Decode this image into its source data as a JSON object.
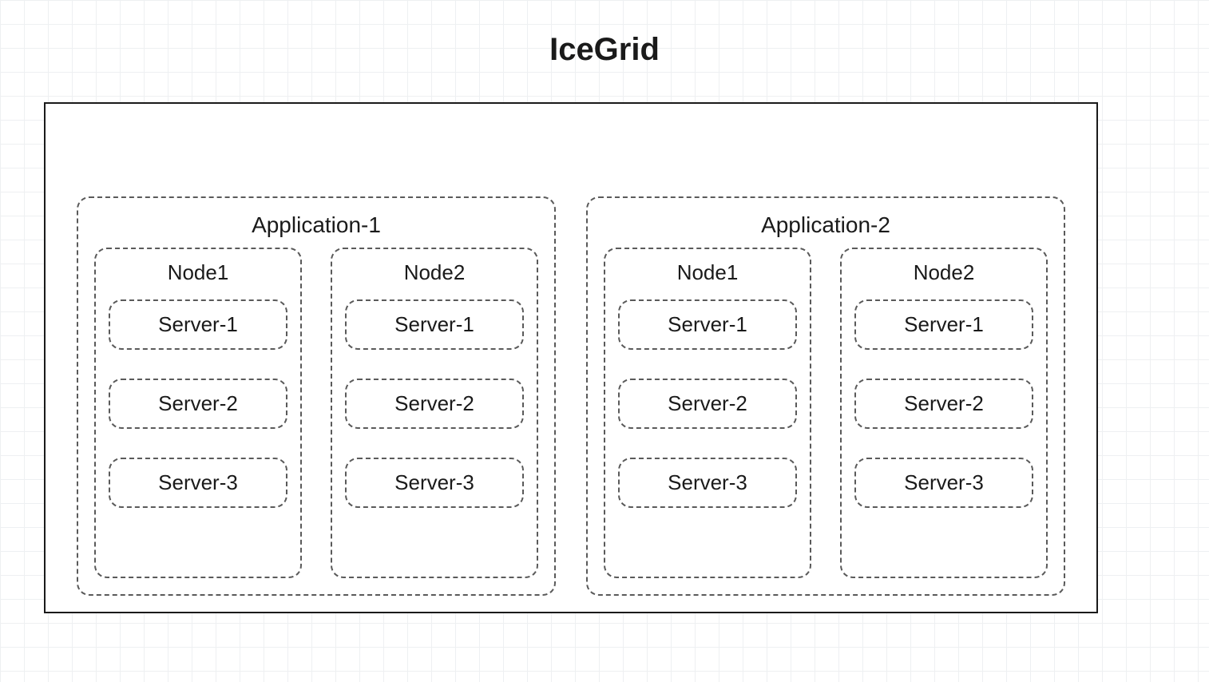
{
  "diagram": {
    "title": "IceGrid",
    "colors": {
      "background": "#ffffff",
      "grid_line": "#eef0f2",
      "border_solid": "#1a1a1a",
      "border_dashed": "#5a5a5a",
      "text": "#1a1a1a"
    },
    "grid_cell_size": 30,
    "font_sizes": {
      "title": 40,
      "application": 28,
      "node": 26,
      "server": 26
    },
    "border_radius": 16,
    "dash_pattern": "6,6",
    "applications": [
      {
        "label": "Application-1",
        "nodes": [
          {
            "label": "Node1",
            "servers": [
              "Server-1",
              "Server-2",
              "Server-3"
            ]
          },
          {
            "label": "Node2",
            "servers": [
              "Server-1",
              "Server-2",
              "Server-3"
            ]
          }
        ]
      },
      {
        "label": "Application-2",
        "nodes": [
          {
            "label": "Node1",
            "servers": [
              "Server-1",
              "Server-2",
              "Server-3"
            ]
          },
          {
            "label": "Node2",
            "servers": [
              "Server-1",
              "Server-2",
              "Server-3"
            ]
          }
        ]
      }
    ]
  }
}
